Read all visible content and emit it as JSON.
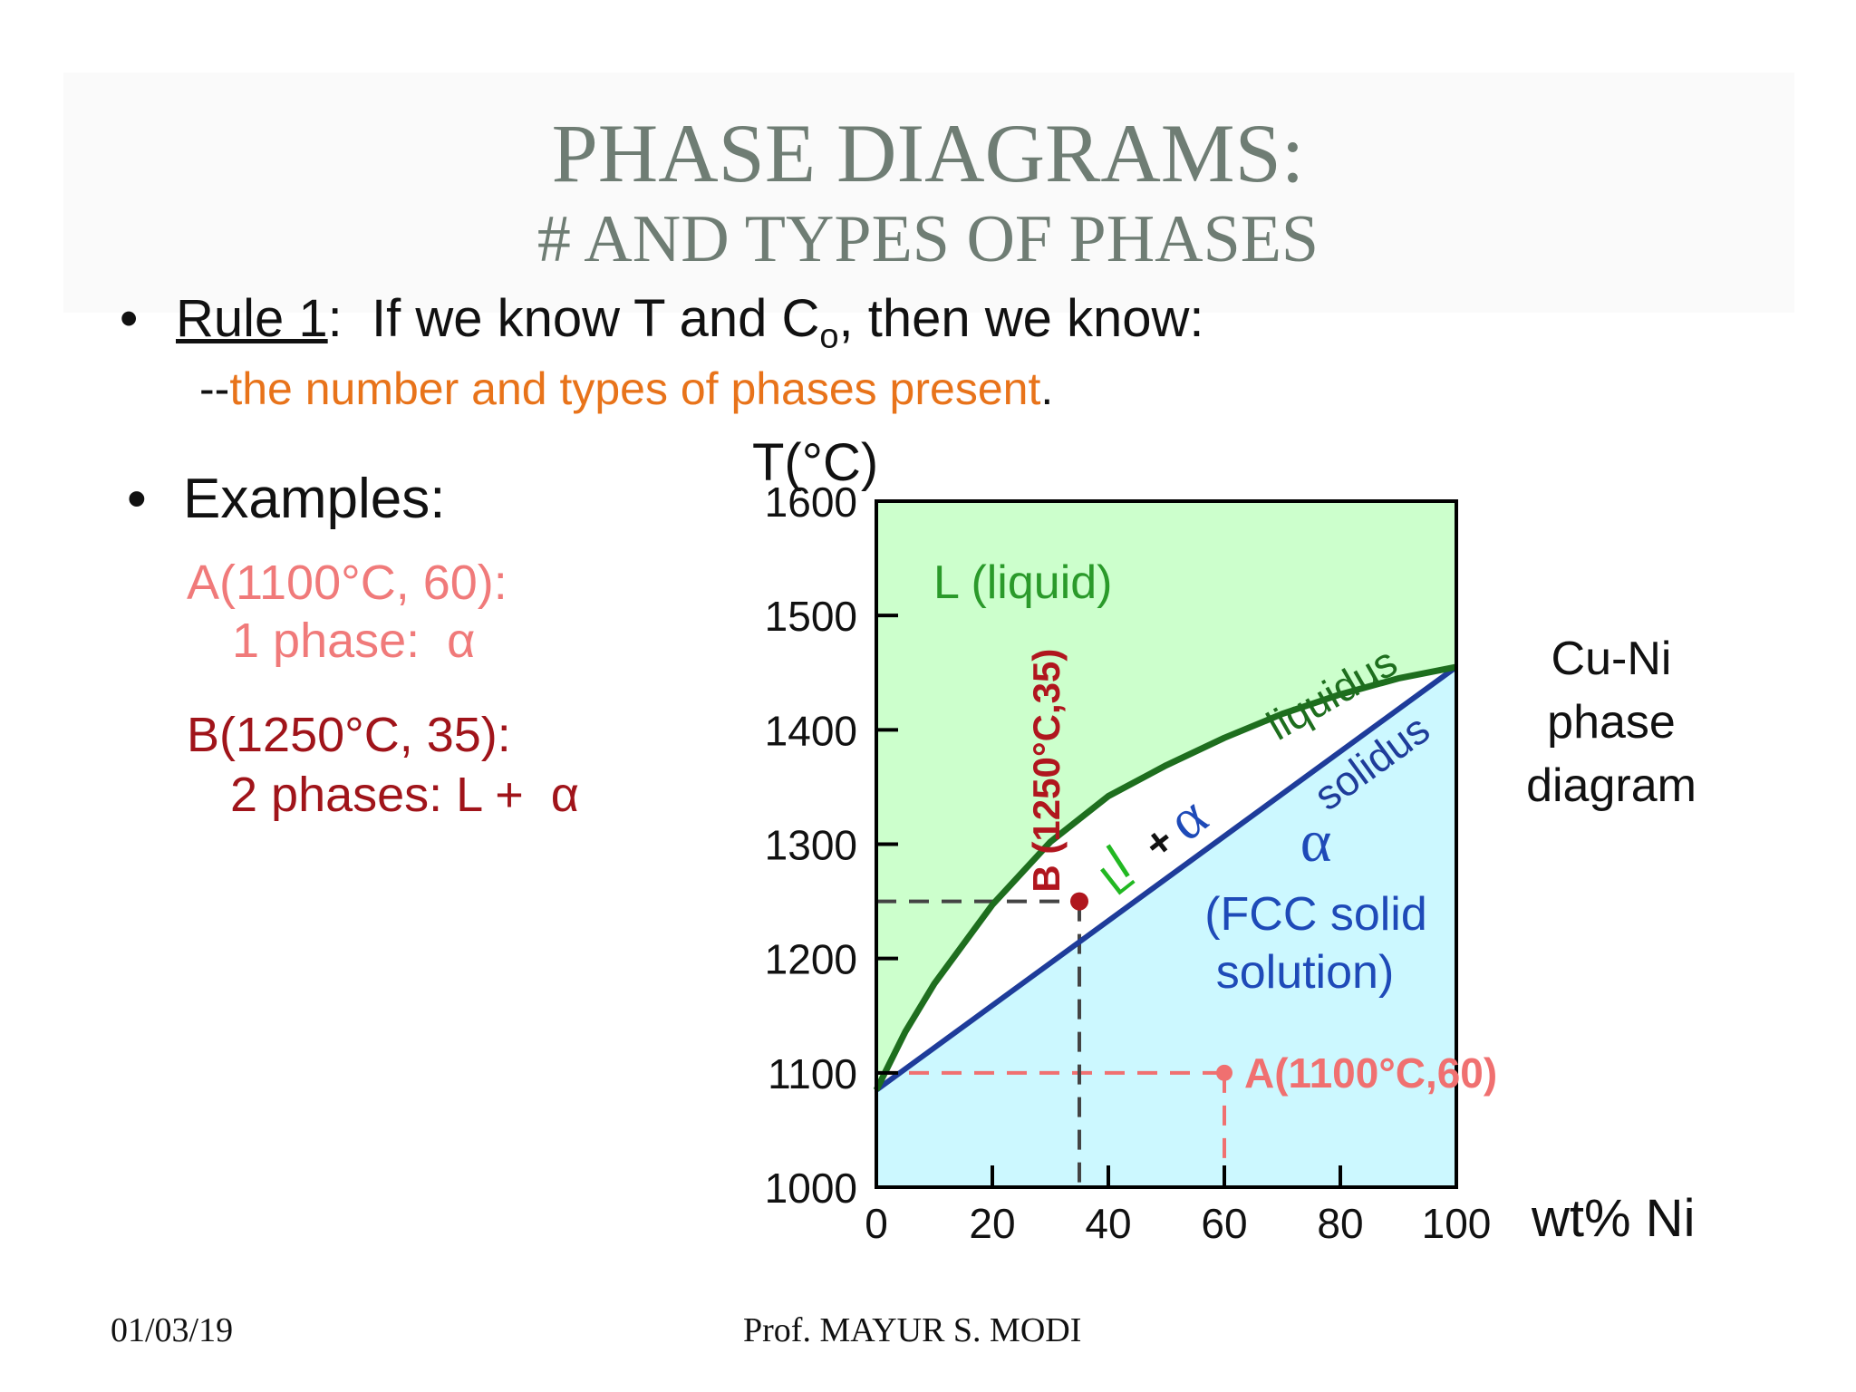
{
  "slide": {
    "title_line1": "PHASE DIAGRAMS:",
    "title_line2": "# AND TYPES OF PHASES",
    "rule_bullet": "•",
    "rule_label": "Rule 1",
    "rule_colon": ":",
    "rule_text_a": "  If we know T and C",
    "rule_subscript": "o",
    "rule_text_b": ", then we know:",
    "rule_sub_prefix": "--",
    "rule_sub_text": "the number and types of phases present",
    "rule_sub_suffix": ".",
    "examples_bullet": "•",
    "examples_label": "Examples:",
    "example_a_line1": "A(1100°C, 60):",
    "example_a_line2": "1 phase:  α",
    "example_b_line1": "B(1250°C, 35):",
    "example_b_line2": "2 phases: L +  α",
    "footer_date": "01/03/19",
    "footer_author": "Prof. MAYUR S. MODI"
  },
  "chart_data": {
    "type": "phase-diagram",
    "ylabel": "T(°C)",
    "xlabel": "wt% Ni",
    "xlim": [
      0,
      100
    ],
    "ylim": [
      1000,
      1600
    ],
    "xticks": [
      0,
      20,
      40,
      60,
      80,
      100
    ],
    "yticks": [
      1000,
      1100,
      1200,
      1300,
      1400,
      1500,
      1600
    ],
    "liquidus": [
      [
        0,
        1085
      ],
      [
        5,
        1136
      ],
      [
        10,
        1178
      ],
      [
        20,
        1247
      ],
      [
        30,
        1302
      ],
      [
        40,
        1342
      ],
      [
        50,
        1369
      ],
      [
        60,
        1393
      ],
      [
        70,
        1414
      ],
      [
        80,
        1431
      ],
      [
        90,
        1445
      ],
      [
        100,
        1455
      ]
    ],
    "solidus": [
      [
        0,
        1085
      ],
      [
        100,
        1455
      ]
    ],
    "regions": {
      "liquid": "L (liquid)",
      "two_phase_L": "L",
      "two_phase_plus": "+",
      "two_phase_alpha": "α",
      "solid_symbol": "α",
      "solid_line1": "(FCC solid",
      "solid_line2": "solution)"
    },
    "curve_labels": {
      "liquidus": "liquidus",
      "solidus": "solidus"
    },
    "points": [
      {
        "id": "A",
        "x": 60,
        "y": 1100,
        "label": "A(1100°C,60)"
      },
      {
        "id": "B",
        "x": 35,
        "y": 1250,
        "label": "B (1250°C,35)"
      }
    ],
    "side_label": [
      "Cu-Ni",
      "phase",
      "diagram"
    ],
    "colors": {
      "liquid_fill": "#ccffcc",
      "solid_fill": "#ccf8ff",
      "two_phase_fill": "#ffffff",
      "liquidus": "#1e6e1e",
      "solidus": "#1e3c9a",
      "liquid_text": "#2a9a2a",
      "solid_text": "#1e4ab8",
      "point_a": "#f07070",
      "point_b": "#b0161e",
      "guide_b": "#444444"
    }
  }
}
